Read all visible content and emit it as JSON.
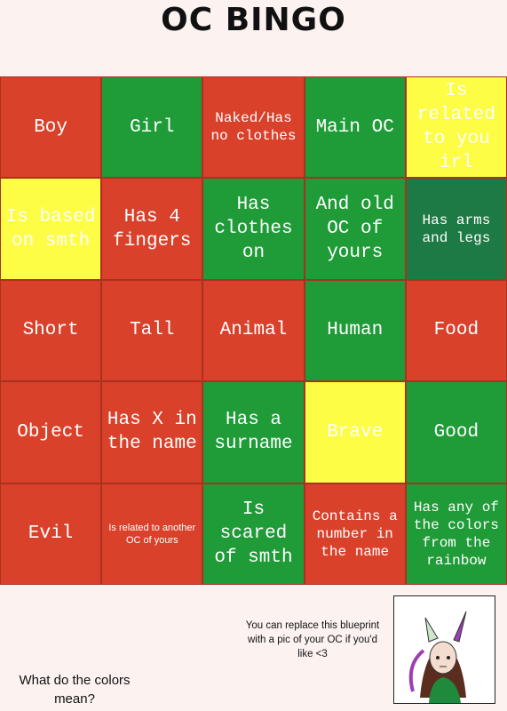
{
  "title": "OC BINGO",
  "grid": [
    [
      {
        "label": "Boy",
        "color": "#d9412b"
      },
      {
        "label": "Girl",
        "color": "#1f9b38"
      },
      {
        "label": "Naked/Has no clothes",
        "color": "#d9412b"
      },
      {
        "label": "Main OC",
        "color": "#1f9b38"
      },
      {
        "label": "Is related to you irl",
        "color": "#fdfd45"
      }
    ],
    [
      {
        "label": "Is based on smth",
        "color": "#fdfd45"
      },
      {
        "label": "Has 4 fingers",
        "color": "#d9412b"
      },
      {
        "label": "Has clothes on",
        "color": "#1f9b38"
      },
      {
        "label": "And old OC of yours",
        "color": "#1f9b38"
      },
      {
        "label": "Has arms and legs",
        "color": "#1e7a44"
      }
    ],
    [
      {
        "label": "Short",
        "color": "#d9412b"
      },
      {
        "label": "Tall",
        "color": "#d9412b"
      },
      {
        "label": "Animal",
        "color": "#d9412b"
      },
      {
        "label": "Human",
        "color": "#1f9b38"
      },
      {
        "label": "Food",
        "color": "#d9412b"
      }
    ],
    [
      {
        "label": "Object",
        "color": "#d9412b"
      },
      {
        "label": "Has X in the name",
        "color": "#d9412b"
      },
      {
        "label": "Has a surname",
        "color": "#1f9b38"
      },
      {
        "label": "Brave",
        "color": "#fdfd45"
      },
      {
        "label": "Good",
        "color": "#1f9b38"
      }
    ],
    [
      {
        "label": "Evil",
        "color": "#d9412b"
      },
      {
        "label": "Is related to another OC of yours",
        "color": "#d9412b"
      },
      {
        "label": "Is scared of smth",
        "color": "#1f9b38"
      },
      {
        "label": "Contains a number in the name",
        "color": "#d9412b"
      },
      {
        "label": "Has any of the colors from the rainbow",
        "color": "#1f9b38"
      }
    ]
  ],
  "note": "You can replace this blueprint with a pic of your OC if you'd like <3",
  "question": "What do the colors mean?"
}
